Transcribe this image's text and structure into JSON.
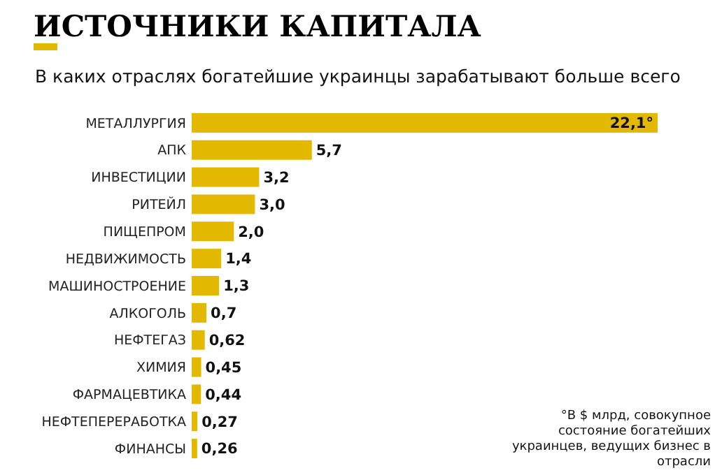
{
  "chart_data": {
    "type": "bar",
    "orientation": "horizontal",
    "title": "ИСТОЧНИКИ КАПИТАЛА",
    "subtitle": "В каких отраслях богатейшие украинцы зарабатывают больше всего",
    "categories": [
      "МЕТАЛЛУРГИЯ",
      "АПК",
      "ИНВЕСТИЦИИ",
      "РИТЕЙЛ",
      "ПИЩЕПРОМ",
      "НЕДВИЖИМОСТЬ",
      "МАШИНОСТРОЕНИЕ",
      "АЛКОГОЛЬ",
      "НЕФТЕГАЗ",
      "ХИМИЯ",
      "ФАРМАЦЕВТИКА",
      "НЕФТЕПЕРЕРАБОТКА",
      "ФИНАНСЫ"
    ],
    "values": [
      22.1,
      5.7,
      3.2,
      3.0,
      2.0,
      1.4,
      1.3,
      0.7,
      0.62,
      0.45,
      0.44,
      0.27,
      0.26
    ],
    "value_labels": [
      "22,1°",
      "5,7",
      "3,2",
      "3,0",
      "2,0",
      "1,4",
      "1,3",
      "0,7",
      "0,62",
      "0,45",
      "0,44",
      "0,27",
      "0,26"
    ],
    "color": "#e3b900",
    "tick_labels": "y",
    "annotations": [
      "°В $ млрд, совокупное состояние богатейших украинцев, ведущих бизнес в отрасли"
    ]
  }
}
